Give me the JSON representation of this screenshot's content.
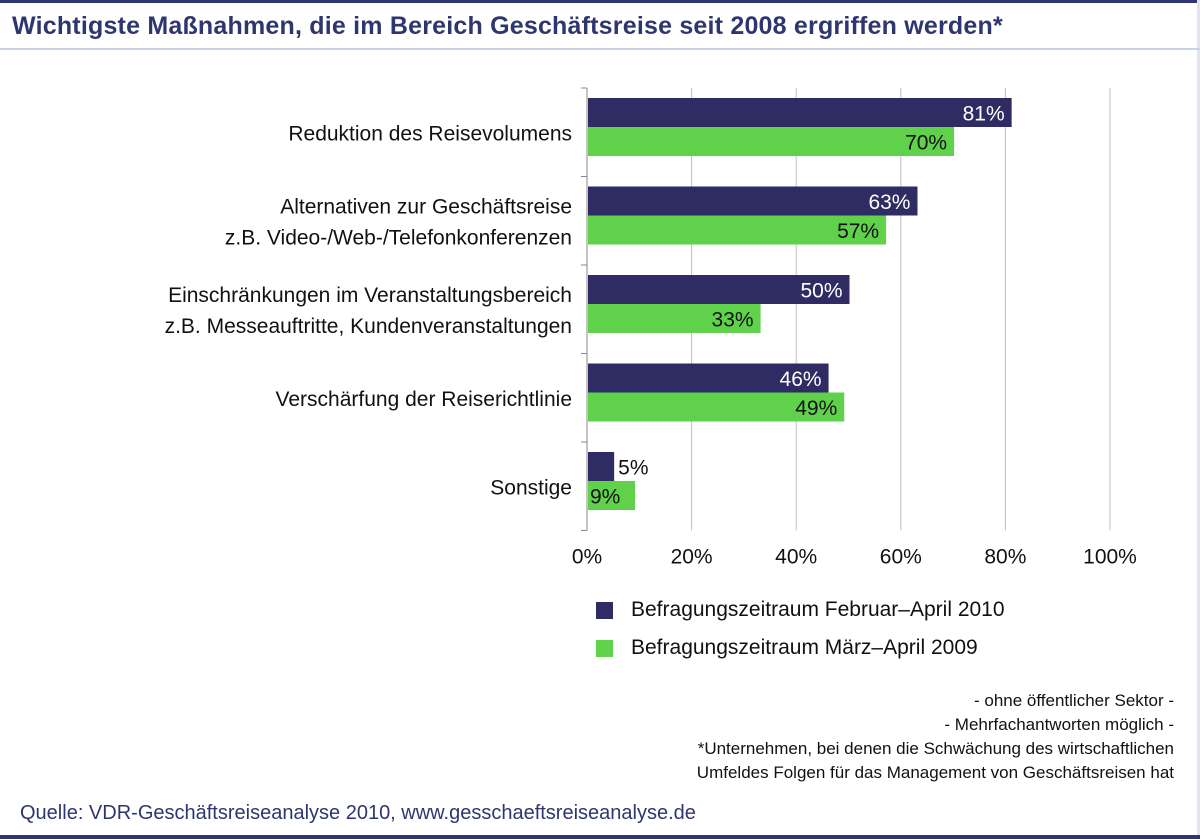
{
  "title": "Wichtigste Maßnahmen, die im Bereich Geschäftsreise seit 2008 ergriffen werden*",
  "colors": {
    "series1": "#2e2c63",
    "series2": "#5fd14a",
    "title": "#2e3670",
    "grid": "#bfbfbf"
  },
  "chart_data": {
    "type": "bar",
    "orientation": "horizontal",
    "categories": [
      [
        "Reduktion des Reisevolumens"
      ],
      [
        "Alternativen zur Geschäftsreise",
        "z.B. Video-/Web-/Telefonkonferenzen"
      ],
      [
        "Einschränkungen im Veranstaltungsbereich",
        "z.B. Messeauftritte, Kundenveranstaltungen"
      ],
      [
        "Verschärfung der Reiserichtlinie"
      ],
      [
        "Sonstige"
      ]
    ],
    "series": [
      {
        "name": "Befragungszeitraum Februar–April 2010",
        "values": [
          81,
          63,
          50,
          46,
          5
        ],
        "color": "#2e2c63"
      },
      {
        "name": "Befragungszeitraum März–April 2009",
        "values": [
          70,
          57,
          33,
          49,
          9
        ],
        "color": "#5fd14a"
      }
    ],
    "xlim": [
      0,
      100
    ],
    "xticks": [
      "0%",
      "20%",
      "40%",
      "60%",
      "80%",
      "100%"
    ],
    "grid": true,
    "legend_position": "bottom"
  },
  "notes": [
    "- ohne öffentlicher Sektor -",
    "- Mehrfachantworten möglich -",
    "*Unternehmen, bei denen die Schwächung des wirtschaftlichen",
    "Umfeldes Folgen für das Management von Geschäftsreisen hat"
  ],
  "source": "Quelle: VDR-Geschäftsreiseanalyse 2010, www.gesschaeftsreiseanalyse.de"
}
